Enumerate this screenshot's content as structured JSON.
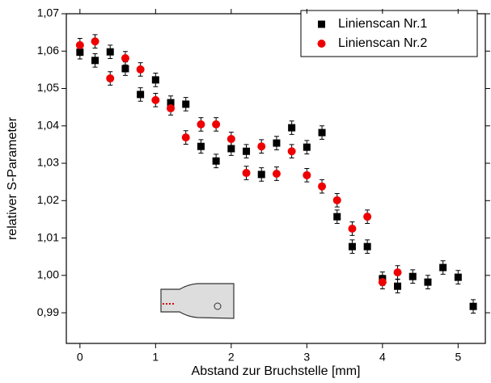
{
  "chart_data": {
    "type": "scatter",
    "xlabel": "Abstand zur Bruchstelle [mm]",
    "ylabel": "relativer S-Parameter",
    "xlim": [
      -0.18,
      5.36
    ],
    "ylim": [
      0.9818,
      1.07
    ],
    "xticks": [
      0,
      1,
      2,
      3,
      4,
      5
    ],
    "yticks": [
      {
        "value": 0.99,
        "label": "0,99"
      },
      {
        "value": 1.0,
        "label": "1,00"
      },
      {
        "value": 1.01,
        "label": "1,01"
      },
      {
        "value": 1.02,
        "label": "1,02"
      },
      {
        "value": 1.03,
        "label": "1,03"
      },
      {
        "value": 1.04,
        "label": "1,04"
      },
      {
        "value": 1.05,
        "label": "1,05"
      },
      {
        "value": 1.06,
        "label": "1,06"
      },
      {
        "value": 1.07,
        "label": "1,07"
      }
    ],
    "legend": "top-right",
    "series": [
      {
        "name": "Linienscan Nr.1",
        "color": "#000000",
        "marker": "square",
        "x": [
          0,
          0.2,
          0.4,
          0.6,
          0.8,
          1.0,
          1.2,
          1.4,
          1.6,
          1.8,
          2.0,
          2.2,
          2.4,
          2.6,
          2.8,
          3.0,
          3.2,
          3.4,
          3.6,
          3.8,
          4.0,
          4.2,
          4.4,
          4.6,
          4.8,
          5.0,
          5.2
        ],
        "values": [
          1.0597,
          1.0575,
          1.0598,
          1.0553,
          1.0484,
          1.0523,
          1.0462,
          1.0458,
          1.0345,
          1.0306,
          1.0339,
          1.0332,
          1.027,
          1.0354,
          1.0395,
          1.0343,
          1.0382,
          1.0157,
          1.0077,
          1.0077,
          0.9991,
          0.9971,
          0.9997,
          0.9982,
          1.0021,
          0.9995,
          0.9917
        ],
        "errors": [
          0.0018,
          0.0018,
          0.0018,
          0.0018,
          0.0018,
          0.0018,
          0.0018,
          0.0018,
          0.0018,
          0.0018,
          0.0018,
          0.0018,
          0.0018,
          0.0018,
          0.0018,
          0.0018,
          0.0018,
          0.0018,
          0.0018,
          0.0018,
          0.0018,
          0.0018,
          0.0018,
          0.0018,
          0.0018,
          0.0018,
          0.0018
        ]
      },
      {
        "name": "Linienscan Nr.2",
        "color": "#ee0000",
        "marker": "circle",
        "x": [
          0,
          0.2,
          0.4,
          0.6,
          0.8,
          1.0,
          1.2,
          1.4,
          1.6,
          1.8,
          2.0,
          2.2,
          2.4,
          2.6,
          2.8,
          3.0,
          3.2,
          3.4,
          3.6,
          3.8,
          4.0,
          4.2
        ],
        "values": [
          1.0616,
          1.0626,
          1.0527,
          1.0581,
          1.0551,
          1.0469,
          1.0447,
          1.0369,
          1.0404,
          1.0404,
          1.0365,
          1.0274,
          1.0345,
          1.0272,
          1.0332,
          1.0268,
          1.0238,
          1.0201,
          1.0125,
          1.0157,
          0.9982,
          1.0008
        ],
        "errors": [
          0.0018,
          0.0018,
          0.0018,
          0.0018,
          0.0018,
          0.0018,
          0.0018,
          0.0018,
          0.0018,
          0.0018,
          0.0018,
          0.0018,
          0.0018,
          0.0018,
          0.0018,
          0.0018,
          0.0018,
          0.0018,
          0.0018,
          0.0018,
          0.0018,
          0.0018
        ]
      }
    ]
  }
}
